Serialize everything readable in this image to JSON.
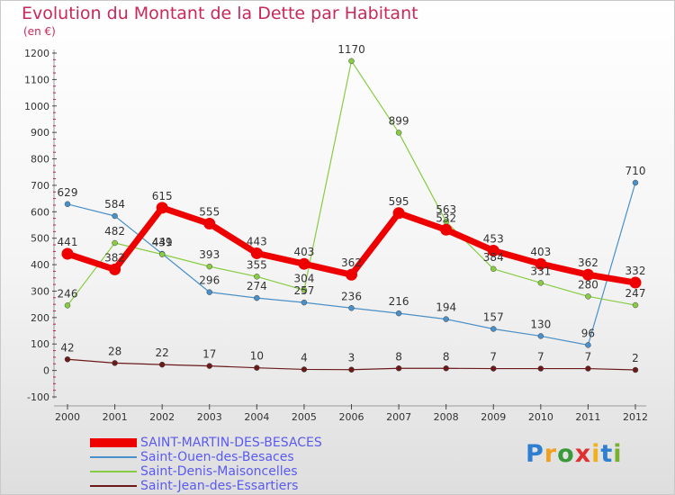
{
  "title": "Evolution du Montant de la Dette par Habitant",
  "subtitle": "(en €)",
  "logo": "Proxiti",
  "chart_data": {
    "type": "line",
    "title": "Evolution du Montant de la Dette par Habitant",
    "subtitle": "(en €)",
    "x": [
      "2000",
      "2001",
      "2002",
      "2003",
      "2004",
      "2005",
      "2006",
      "2007",
      "2008",
      "2009",
      "2010",
      "2011",
      "2012"
    ],
    "ylim": [
      -100,
      1200
    ],
    "yticks": [
      -100,
      0,
      100,
      200,
      300,
      400,
      500,
      600,
      700,
      800,
      900,
      1000,
      1100,
      1200
    ],
    "grid": false,
    "legend_position": "bottom-left",
    "series": [
      {
        "name": "Saint-Ouen-des-Besaces",
        "color": "#4a90c8",
        "values": [
          629,
          584,
          441,
          296,
          274,
          257,
          236,
          216,
          194,
          157,
          130,
          96,
          710
        ]
      },
      {
        "name": "Saint-Denis-Maisoncelles",
        "color": "#88cc44",
        "values": [
          246,
          482,
          439,
          393,
          355,
          304,
          1170,
          899,
          563,
          384,
          331,
          280,
          247
        ]
      },
      {
        "name": "Saint-Jean-des-Essartiers",
        "color": "#6b1a1a",
        "values": [
          42,
          28,
          22,
          17,
          10,
          4,
          3,
          8,
          8,
          7,
          7,
          7,
          2
        ]
      },
      {
        "name": "SAINT-MARTIN-DES-BESACES",
        "color": "#ee0000",
        "values": [
          441,
          382,
          615,
          555,
          443,
          403,
          362,
          595,
          532,
          453,
          403,
          362,
          332
        ]
      }
    ],
    "legend": [
      {
        "name": "SAINT-MARTIN-DES-BESACES",
        "color": "#ee0000"
      },
      {
        "name": "Saint-Ouen-des-Besaces",
        "color": "#4a90c8"
      },
      {
        "name": "Saint-Denis-Maisoncelles",
        "color": "#88cc44"
      },
      {
        "name": "Saint-Jean-des-Essartiers",
        "color": "#6b1a1a"
      }
    ]
  }
}
